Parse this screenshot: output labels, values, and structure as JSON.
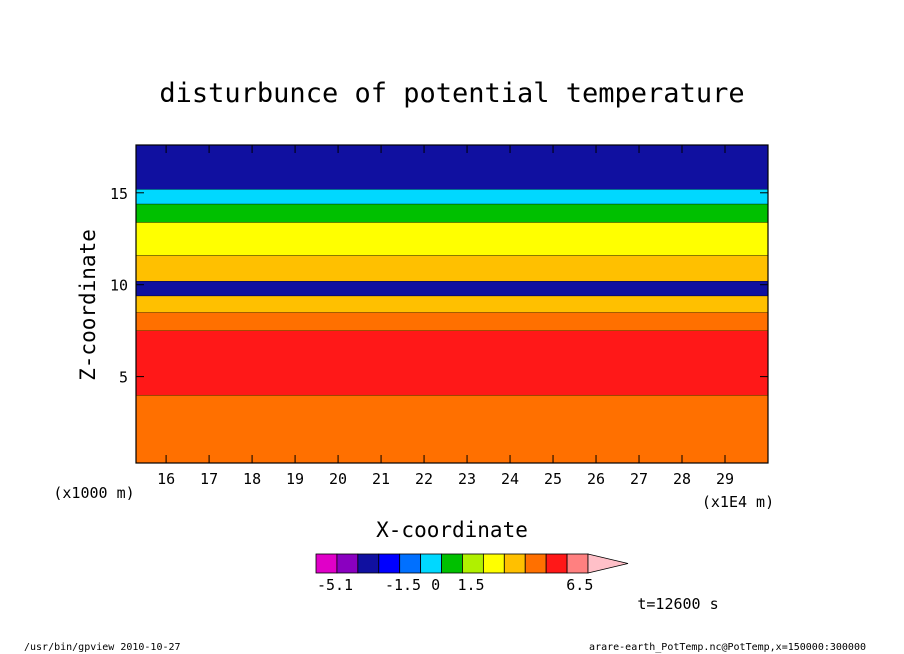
{
  "chart_data": {
    "type": "heatmap",
    "title": "disturbunce of potential temperature",
    "xlabel": "X-coordinate",
    "ylabel": "Z-coordinate",
    "x_unit": "(x1E4 m)",
    "y_unit": "(x1000 m)",
    "xlim": [
      15.3,
      30.0
    ],
    "ylim": [
      0.3,
      17.6
    ],
    "x_ticks": [
      16,
      17,
      18,
      19,
      20,
      21,
      22,
      23,
      24,
      25,
      26,
      27,
      28,
      29
    ],
    "y_ticks": [
      5,
      10,
      15
    ],
    "colorbar": {
      "labels": [
        "-5.1",
        "-1.5",
        "0",
        "1.5",
        "6.5"
      ],
      "colors": [
        "#e000c8",
        "#8a00c0",
        "#1010a0",
        "#0000ff",
        "#0070ff",
        "#00d8ff",
        "#00c000",
        "#b0f000",
        "#ffff00",
        "#ffc000",
        "#ff7000",
        "#ff1818",
        "#ff8080",
        "#ffc0c8"
      ]
    },
    "bands": [
      {
        "z_from": 0.3,
        "z_to": 4.0,
        "color": "#ff7000",
        "level": "~1.5 to 3"
      },
      {
        "z_from": 4.0,
        "z_to": 7.5,
        "color": "#ff1818",
        "level": "~3 to 5"
      },
      {
        "z_from": 7.5,
        "z_to": 8.5,
        "color": "#ff7000",
        "level": "~1.5 to 3"
      },
      {
        "z_from": 8.5,
        "z_to": 9.4,
        "color": "#ffc000",
        "level": "~1 to 1.5"
      },
      {
        "z_from": 9.4,
        "z_to": 10.2,
        "color": "#1010a0",
        "level": "< -2"
      },
      {
        "z_from": 10.2,
        "z_to": 11.6,
        "color": "#ffc000",
        "level": "~1 to 1.5"
      },
      {
        "z_from": 11.6,
        "z_to": 13.4,
        "color": "#ffff00",
        "level": "~0.5 to 1"
      },
      {
        "z_from": 13.4,
        "z_to": 14.4,
        "color": "#00c000",
        "level": "~0"
      },
      {
        "z_from": 14.4,
        "z_to": 15.2,
        "color": "#00d8ff",
        "level": "~ -0.5"
      },
      {
        "z_from": 15.2,
        "z_to": 17.6,
        "color": "#1010a0",
        "level": "< -2"
      }
    ]
  },
  "time_label": "t=12600 s",
  "footer_left": "/usr/bin/gpview   2010-10-27",
  "footer_right": "arare-earth_PotTemp.nc@PotTemp,x=150000:300000"
}
